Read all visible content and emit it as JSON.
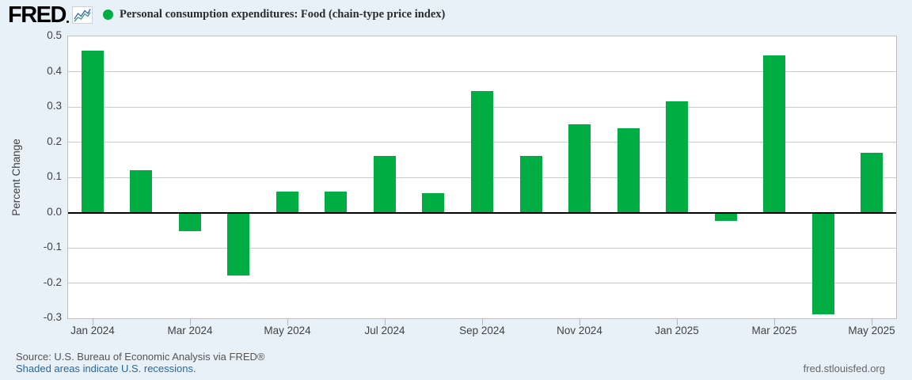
{
  "header": {
    "logo_text": "FRED",
    "legend_marker_color": "#00ad43",
    "series_label": "Personal consumption expenditures: Food (chain-type price index)"
  },
  "chart_data": {
    "type": "bar",
    "title": "Personal consumption expenditures: Food (chain-type price index)",
    "ylabel": "Percent Change",
    "ylim": [
      -0.3,
      0.5
    ],
    "ytick_step": 0.1,
    "yticks": [
      0.5,
      0.4,
      0.3,
      0.2,
      0.1,
      0.0,
      -0.1,
      -0.2,
      -0.3
    ],
    "grid": true,
    "legend_position": "top-left",
    "bar_color": "#00ad43",
    "categories": [
      "Jan 2024",
      "Feb 2024",
      "Mar 2024",
      "Apr 2024",
      "May 2024",
      "Jun 2024",
      "Jul 2024",
      "Aug 2024",
      "Sep 2024",
      "Oct 2024",
      "Nov 2024",
      "Dec 2024",
      "Jan 2025",
      "Feb 2025",
      "Mar 2025",
      "Apr 2025",
      "May 2025"
    ],
    "values": [
      0.46,
      0.12,
      -0.05,
      -0.175,
      0.06,
      0.06,
      0.16,
      0.055,
      0.345,
      0.16,
      0.25,
      0.24,
      0.315,
      -0.02,
      0.445,
      -0.285,
      0.17
    ],
    "xtick_every": 2,
    "xtick_labels": [
      "Jan 2024",
      "Mar 2024",
      "May 2024",
      "Jul 2024",
      "Sep 2024",
      "Nov 2024",
      "Jan 2025",
      "Mar 2025",
      "May 2025"
    ]
  },
  "footer": {
    "source_line": "Source: U.S. Bureau of Economic Analysis via FRED®",
    "recession_note": "Shaded areas indicate U.S. recessions.",
    "site_link": "fred.stlouisfed.org"
  },
  "colors": {
    "background": "#e8f0f8",
    "plot_background": "#ffffff",
    "gridline": "#cbcbcb",
    "zero_line": "#000000",
    "bar": "#00ad43",
    "axis_text": "#424242",
    "link_blue": "#2469a5"
  }
}
